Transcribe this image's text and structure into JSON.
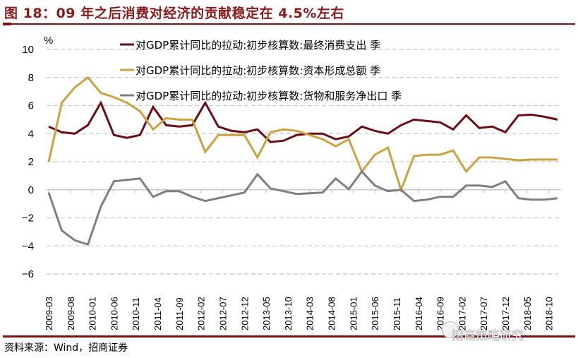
{
  "header": {
    "title": "图 18：09 年之后消费对经济的贡献稳定在 4.5%左右"
  },
  "footer": {
    "source": "资料来源：Wind，招商证券",
    "watermark": "招商策略研究"
  },
  "chart_data": {
    "type": "line",
    "title": "图 18：09 年之后消费对经济的贡献稳定在 4.5%左右",
    "ylabel": "%",
    "xlabel": "",
    "ylim": [
      -6,
      10
    ],
    "yticks": [
      10,
      8,
      6,
      4,
      2,
      0,
      -2,
      -4,
      -6
    ],
    "grid": true,
    "legend_position": "top-right",
    "x_tick_labels": [
      "2009-03",
      "2009-08",
      "2010-01",
      "2010-06",
      "2010-11",
      "2011-04",
      "2011-09",
      "2012-02",
      "2012-07",
      "2012-12",
      "2013-05",
      "2013-10",
      "2014-03",
      "2014-08",
      "2015-01",
      "2015-06",
      "2015-11",
      "2016-04",
      "2016-09",
      "2017-02",
      "2017-07",
      "2017-12",
      "2018-05",
      "2018-10"
    ],
    "x": [
      "2009-03",
      "2009-06",
      "2009-09",
      "2009-12",
      "2010-03",
      "2010-06",
      "2010-09",
      "2010-12",
      "2011-03",
      "2011-06",
      "2011-09",
      "2011-12",
      "2012-03",
      "2012-06",
      "2012-09",
      "2012-12",
      "2013-03",
      "2013-06",
      "2013-09",
      "2013-12",
      "2014-03",
      "2014-06",
      "2014-09",
      "2014-12",
      "2015-03",
      "2015-06",
      "2015-09",
      "2015-12",
      "2016-03",
      "2016-06",
      "2016-09",
      "2016-12",
      "2017-03",
      "2017-06",
      "2017-09",
      "2017-12",
      "2018-03",
      "2018-06",
      "2018-09",
      "2018-12"
    ],
    "series": [
      {
        "name": "对GDP累计同比的拉动:初步核算数:最终消费支出 季",
        "color": "#6b0d14",
        "values": [
          4.5,
          4.1,
          4.0,
          4.6,
          6.2,
          3.9,
          3.7,
          3.9,
          5.9,
          4.6,
          4.5,
          4.6,
          6.2,
          4.5,
          4.2,
          4.1,
          4.3,
          3.4,
          3.5,
          3.9,
          4.0,
          4.0,
          3.6,
          3.8,
          4.5,
          4.2,
          4.0,
          4.6,
          5.0,
          4.9,
          4.8,
          4.3,
          5.3,
          4.4,
          4.5,
          4.1,
          5.3,
          5.35,
          5.2,
          5.0
        ]
      },
      {
        "name": "对GDP累计同比的拉动:初步核算数:资本形成总额 季",
        "color": "#c9a341",
        "values": [
          2.0,
          6.2,
          7.3,
          8.0,
          6.9,
          6.6,
          6.2,
          5.6,
          4.3,
          5.1,
          5.0,
          5.0,
          2.7,
          3.9,
          3.9,
          3.9,
          2.3,
          4.1,
          4.3,
          4.2,
          3.9,
          3.6,
          3.1,
          3.6,
          1.3,
          2.5,
          3.0,
          0.0,
          2.4,
          2.5,
          2.5,
          2.8,
          1.3,
          2.3,
          2.3,
          2.2,
          2.1,
          2.15,
          2.15,
          2.15
        ]
      },
      {
        "name": "对GDP累计同比的拉动:初步核算数:货物和服务净出口 季",
        "color": "#7f7f7f",
        "values": [
          -0.2,
          -2.9,
          -3.6,
          -3.9,
          -1.2,
          0.6,
          0.7,
          0.8,
          -0.5,
          -0.1,
          -0.1,
          -0.5,
          -0.8,
          -0.6,
          -0.4,
          -0.2,
          1.1,
          0.1,
          -0.1,
          -0.3,
          -0.25,
          -0.2,
          0.8,
          0.05,
          1.3,
          0.3,
          -0.1,
          0.0,
          -0.8,
          -0.7,
          -0.5,
          -0.5,
          0.3,
          0.3,
          0.2,
          0.6,
          -0.6,
          -0.7,
          -0.7,
          -0.6
        ]
      }
    ]
  }
}
